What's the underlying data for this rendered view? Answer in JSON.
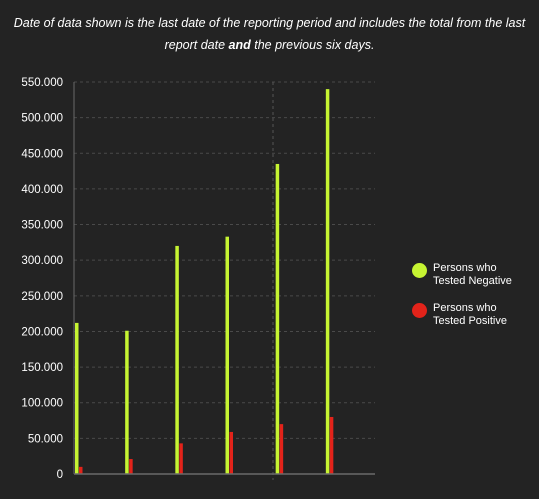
{
  "note": {
    "part1": "Date of data shown is the last date of the reporting period and includes the total from the last report date ",
    "bold": "and",
    "part2": " the previous six days."
  },
  "chart_data": {
    "type": "bar",
    "categories": [
      "",
      "",
      "",
      "",
      "",
      ""
    ],
    "series": [
      {
        "name": "Persons who Tested Negative",
        "color": "#c6f432",
        "values": [
          212000,
          201000,
          320000,
          333000,
          435000,
          540000
        ]
      },
      {
        "name": "Persons who Tested Positive",
        "color": "#e2231a",
        "values": [
          10000,
          21000,
          43000,
          59000,
          70000,
          80000
        ]
      }
    ],
    "ylim": [
      0,
      550000
    ],
    "yticks": [
      "0",
      "50.000",
      "100.000",
      "150.000",
      "200.000",
      "250.000",
      "300.000",
      "350.000",
      "400.000",
      "450.000",
      "500.000",
      "550.000"
    ],
    "grid": true,
    "legend_position": "right"
  }
}
